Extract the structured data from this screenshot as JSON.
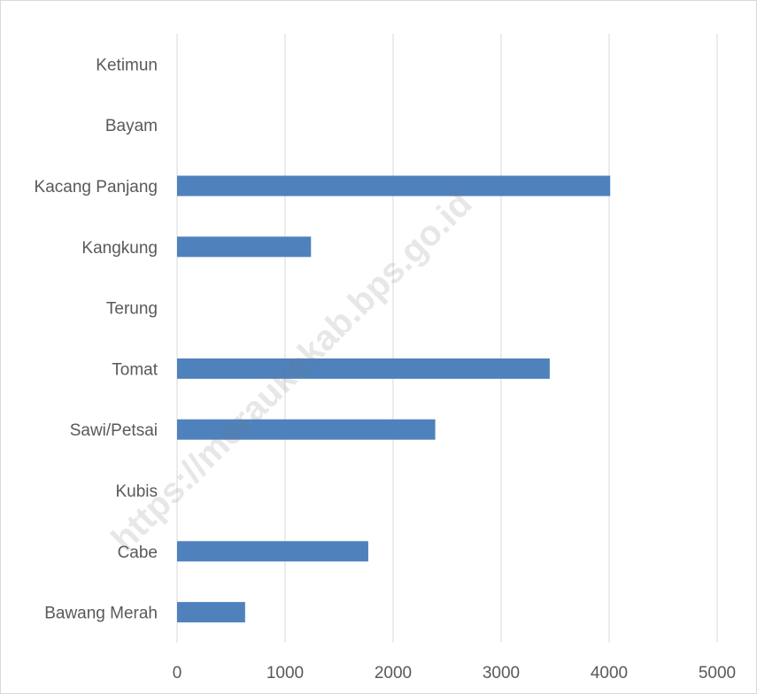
{
  "chart_data": {
    "type": "bar",
    "orientation": "horizontal",
    "categories": [
      "Bawang Merah",
      "Cabe",
      "Kubis",
      "Sawi/Petsai",
      "Tomat",
      "Terung",
      "Kangkung",
      "Kacang Panjang",
      "Bayam",
      "Ketimun"
    ],
    "values": [
      630,
      1770,
      0,
      2390,
      3450,
      0,
      1240,
      4010,
      0,
      0
    ],
    "xlim": [
      0,
      5000
    ],
    "xticks": [
      "0",
      "1000",
      "2000",
      "3000",
      "4000",
      "5000"
    ],
    "grid": true,
    "legend": "none",
    "bar_color": "#4f81bd",
    "grid_color": "#d9d9d9"
  },
  "watermark": "https://meraukekab.bps.go.id"
}
